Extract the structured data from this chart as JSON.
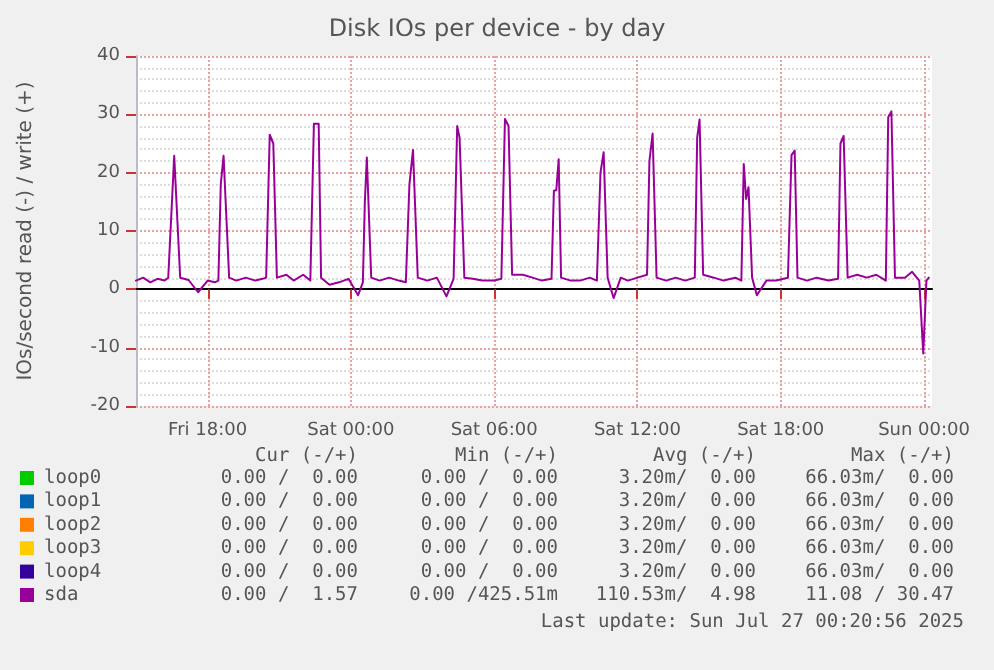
{
  "chart_data": {
    "type": "line",
    "title": "Disk IOs per device - by day",
    "ylabel": "IOs/second read (-) / write (+)",
    "xlim": [
      "2025-07-25T15:00",
      "2025-07-27T00:20"
    ],
    "xticks": [
      {
        "value": "2025-07-25T18:00",
        "label": "Fri 18:00"
      },
      {
        "value": "2025-07-26T00:00",
        "label": "Sat 00:00"
      },
      {
        "value": "2025-07-26T06:00",
        "label": "Sat 06:00"
      },
      {
        "value": "2025-07-26T12:00",
        "label": "Sat 12:00"
      },
      {
        "value": "2025-07-26T18:00",
        "label": "Sat 18:00"
      },
      {
        "value": "2025-07-27T00:00",
        "label": "Sun 00:00"
      }
    ],
    "ylim": [
      -20,
      40
    ],
    "yticks": [
      -20,
      -10,
      0,
      10,
      20,
      30,
      40
    ],
    "grid": true,
    "legend": "bottom left",
    "marker": "none",
    "line_style": "solid",
    "series": [
      {
        "name": "loop0",
        "color": "#00cc00"
      },
      {
        "name": "loop1",
        "color": "#0066b3"
      },
      {
        "name": "loop2",
        "color": "#ff8000"
      },
      {
        "name": "loop3",
        "color": "#ffcc00"
      },
      {
        "name": "loop4",
        "color": "#330099"
      },
      {
        "name": "sda",
        "color": "#990099",
        "x": [
          "2025-07-25T15:00",
          "2025-07-25T15:18",
          "2025-07-25T15:36",
          "2025-07-25T15:54",
          "2025-07-25T16:12",
          "2025-07-25T16:21",
          "2025-07-25T16:36",
          "2025-07-25T16:51",
          "2025-07-25T17:12",
          "2025-07-25T17:36",
          "2025-07-25T18:00",
          "2025-07-25T18:18",
          "2025-07-25T18:27",
          "2025-07-25T18:33",
          "2025-07-25T18:40",
          "2025-07-25T18:54",
          "2025-07-25T19:12",
          "2025-07-25T19:36",
          "2025-07-25T20:00",
          "2025-07-25T20:18",
          "2025-07-25T20:27",
          "2025-07-25T20:36",
          "2025-07-25T20:45",
          "2025-07-25T20:54",
          "2025-07-25T21:18",
          "2025-07-25T21:36",
          "2025-07-25T22:00",
          "2025-07-25T22:18",
          "2025-07-25T22:27",
          "2025-07-25T22:39",
          "2025-07-25T22:45",
          "2025-07-25T23:06",
          "2025-07-25T23:30",
          "2025-07-25T23:54",
          "2025-07-26T00:18",
          "2025-07-26T00:30",
          "2025-07-26T00:35",
          "2025-07-26T00:40",
          "2025-07-26T00:51",
          "2025-07-26T01:12",
          "2025-07-26T01:36",
          "2025-07-26T02:00",
          "2025-07-26T02:18",
          "2025-07-26T02:27",
          "2025-07-26T02:36",
          "2025-07-26T02:48",
          "2025-07-26T03:12",
          "2025-07-26T03:36",
          "2025-07-26T04:00",
          "2025-07-26T04:18",
          "2025-07-26T04:27",
          "2025-07-26T04:33",
          "2025-07-26T04:45",
          "2025-07-26T05:06",
          "2025-07-26T05:30",
          "2025-07-26T06:00",
          "2025-07-26T06:18",
          "2025-07-26T06:27",
          "2025-07-26T06:36",
          "2025-07-26T06:45",
          "2025-07-26T07:12",
          "2025-07-26T07:36",
          "2025-07-26T08:00",
          "2025-07-26T08:24",
          "2025-07-26T08:30",
          "2025-07-26T08:36",
          "2025-07-26T08:42",
          "2025-07-26T08:48",
          "2025-07-26T09:12",
          "2025-07-26T09:36",
          "2025-07-26T10:00",
          "2025-07-26T10:18",
          "2025-07-26T10:27",
          "2025-07-26T10:35",
          "2025-07-26T10:45",
          "2025-07-26T11:00",
          "2025-07-26T11:18",
          "2025-07-26T11:36",
          "2025-07-26T12:00",
          "2025-07-26T12:24",
          "2025-07-26T12:30",
          "2025-07-26T12:38",
          "2025-07-26T12:48",
          "2025-07-26T13:12",
          "2025-07-26T13:36",
          "2025-07-26T14:00",
          "2025-07-26T14:24",
          "2025-07-26T14:30",
          "2025-07-26T14:36",
          "2025-07-26T14:45",
          "2025-07-26T15:12",
          "2025-07-26T15:36",
          "2025-07-26T16:06",
          "2025-07-26T16:21",
          "2025-07-26T16:27",
          "2025-07-26T16:33",
          "2025-07-26T16:39",
          "2025-07-26T16:48",
          "2025-07-26T17:00",
          "2025-07-26T17:24",
          "2025-07-26T17:48",
          "2025-07-26T18:18",
          "2025-07-26T18:27",
          "2025-07-26T18:35",
          "2025-07-26T18:42",
          "2025-07-26T19:06",
          "2025-07-26T19:30",
          "2025-07-26T20:00",
          "2025-07-26T20:24",
          "2025-07-26T20:30",
          "2025-07-26T20:38",
          "2025-07-26T20:48",
          "2025-07-26T21:12",
          "2025-07-26T21:36",
          "2025-07-26T22:00",
          "2025-07-26T22:24",
          "2025-07-26T22:30",
          "2025-07-26T22:38",
          "2025-07-26T22:47",
          "2025-07-26T23:12",
          "2025-07-26T23:30",
          "2025-07-26T23:48",
          "2025-07-26T23:58",
          "2025-07-27T00:06",
          "2025-07-27T00:12"
        ],
        "values": [
          1.5,
          2.0,
          1.2,
          1.8,
          1.5,
          2,
          22.9,
          2,
          1.6,
          -0.5,
          1.5,
          1.2,
          1.5,
          18,
          22.9,
          2,
          1.5,
          2,
          1.5,
          1.8,
          2,
          26.5,
          25,
          2,
          2.5,
          1.5,
          2.5,
          1.5,
          28.4,
          28.4,
          2,
          0.8,
          1.2,
          1.8,
          -1,
          1.2,
          15,
          22.6,
          2,
          1.5,
          2,
          1.5,
          1.2,
          18,
          23.9,
          2,
          1.5,
          2,
          -1.2,
          1.8,
          28,
          26,
          2,
          1.8,
          1.5,
          1.5,
          1.8,
          29.2,
          28,
          2.5,
          2.5,
          2,
          1.5,
          1.8,
          16.9,
          17,
          22.3,
          2,
          1.5,
          1.5,
          2,
          1.5,
          20,
          23.5,
          2,
          -1.5,
          2,
          1.5,
          2,
          2.5,
          22,
          26.7,
          2,
          1.5,
          2,
          1.5,
          2,
          26,
          29.1,
          2.5,
          2,
          1.5,
          2,
          1.5,
          21.5,
          15.5,
          17.5,
          2,
          -1,
          1.5,
          1.5,
          2,
          23,
          23.8,
          2,
          1.5,
          2,
          1.5,
          1.8,
          25,
          26.3,
          2,
          2.5,
          2,
          2.5,
          1.5,
          29.5,
          30.5,
          2,
          2,
          3,
          1.5,
          -11,
          1.5,
          2
        ]
      }
    ],
    "annotations": [
      "Cur (-/+)",
      "Min (-/+)",
      "Avg (-/+)",
      "Max (-/+)",
      "0.00 /  0.00",
      "0.00 /  0.00",
      "3.20m/  0.00",
      "66.03m/  0.00",
      "0.00 /  0.00",
      "0.00 /  0.00",
      "3.20m/  0.00",
      "66.03m/  0.00",
      "0.00 /  0.00",
      "0.00 /  0.00",
      "3.20m/  0.00",
      "66.03m/  0.00",
      "0.00 /  0.00",
      "0.00 /  0.00",
      "3.20m/  0.00",
      "66.03m/  0.00",
      "0.00 /  0.00",
      "0.00 /  0.00",
      "3.20m/  0.00",
      "66.03m/  0.00",
      "0.00 /  1.57",
      "0.00 /425.51m",
      "110.53m/  4.98",
      "11.08 / 30.47",
      "Last update: Sun Jul 27 00:20:56 2025"
    ]
  }
}
